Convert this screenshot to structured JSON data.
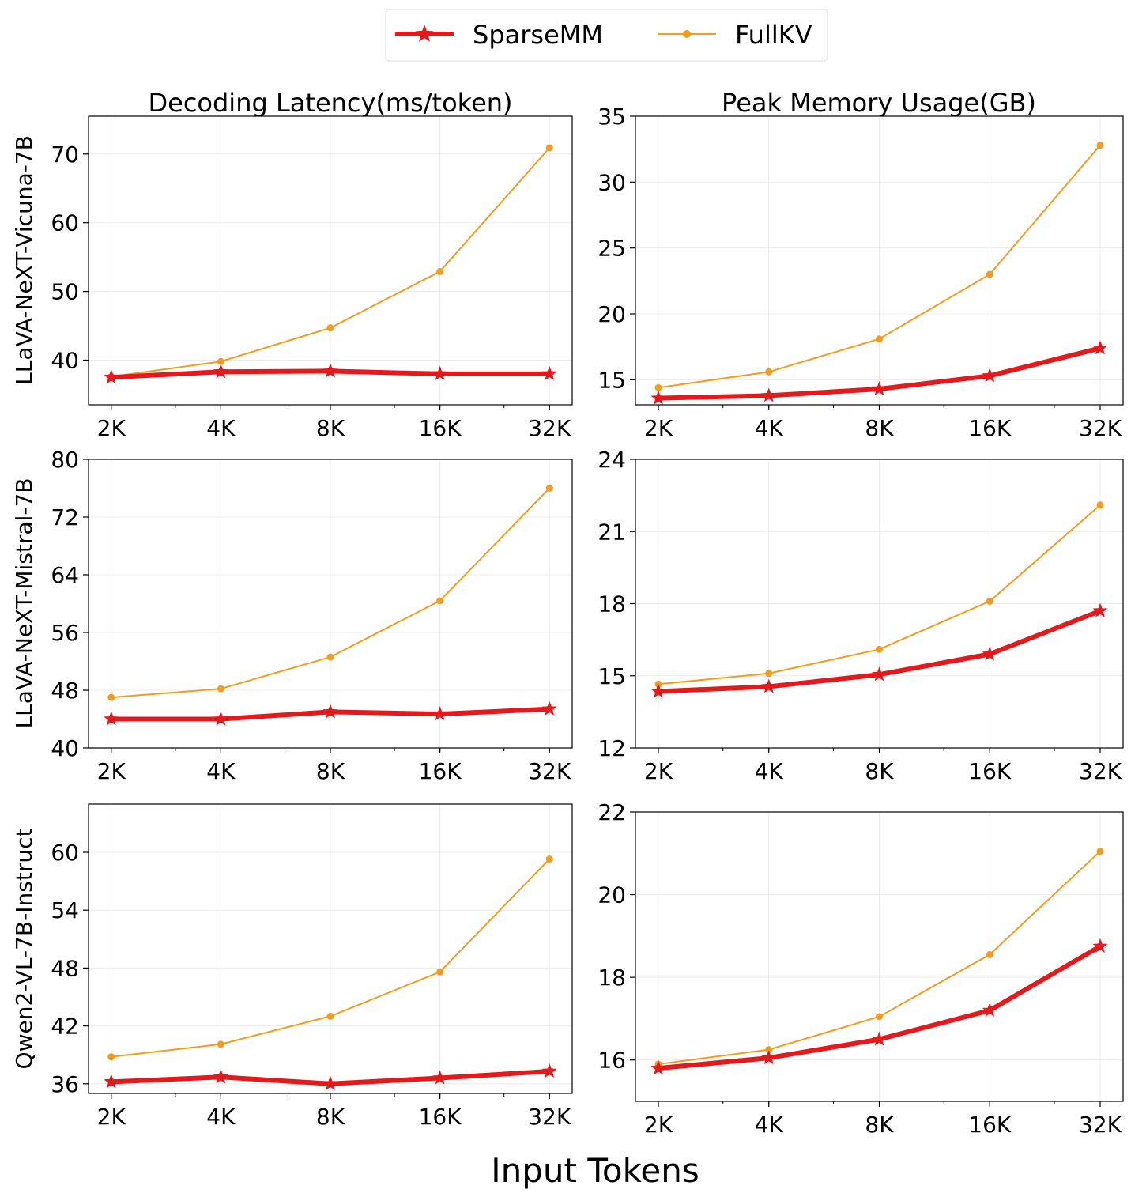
{
  "legend": {
    "entries": [
      {
        "label": "SparseMM",
        "color": "#e3191c",
        "marker": "star"
      },
      {
        "label": "FullKV",
        "color": "#f39c1f",
        "marker": "circle"
      }
    ],
    "placement": "top-center"
  },
  "column_titles": [
    "Decoding Latency(ms/token)",
    "Peak Memory Usage(GB)"
  ],
  "row_labels": [
    "LLaVA-NeXT-Vicuna-7B",
    "LLaVA-NeXT-Mistral-7B",
    "Qwen2-VL-7B-Instruct"
  ],
  "xlabel": "Input Tokens",
  "chart_data": [
    {
      "type": "line",
      "row": 0,
      "col": 0,
      "categories": [
        "2K",
        "4K",
        "8K",
        "16K",
        "32K"
      ],
      "x_scale": "log2",
      "ylim": [
        33.5,
        75.5
      ],
      "yticks": [
        40,
        50,
        60,
        70
      ],
      "grid": true,
      "series": [
        {
          "name": "SparseMM",
          "values": [
            37.5,
            38.3,
            38.4,
            38.0,
            38.0
          ]
        },
        {
          "name": "FullKV",
          "values": [
            37.6,
            39.8,
            44.7,
            52.9,
            70.9
          ]
        }
      ]
    },
    {
      "type": "line",
      "row": 0,
      "col": 1,
      "categories": [
        "2K",
        "4K",
        "8K",
        "16K",
        "32K"
      ],
      "x_scale": "log2",
      "ylim": [
        13.1,
        35
      ],
      "yticks": [
        15,
        20,
        25,
        30,
        35
      ],
      "grid": true,
      "series": [
        {
          "name": "SparseMM",
          "values": [
            13.6,
            13.8,
            14.3,
            15.3,
            17.4
          ]
        },
        {
          "name": "FullKV",
          "values": [
            14.4,
            15.6,
            18.1,
            23.0,
            32.8
          ]
        }
      ]
    },
    {
      "type": "line",
      "row": 1,
      "col": 0,
      "categories": [
        "2K",
        "4K",
        "8K",
        "16K",
        "32K"
      ],
      "x_scale": "log2",
      "ylim": [
        40,
        80
      ],
      "yticks": [
        40,
        48,
        56,
        64,
        72,
        80
      ],
      "grid": true,
      "series": [
        {
          "name": "SparseMM",
          "values": [
            44.0,
            44.0,
            45.0,
            44.7,
            45.4
          ]
        },
        {
          "name": "FullKV",
          "values": [
            47.0,
            48.2,
            52.6,
            60.4,
            76.0
          ]
        }
      ]
    },
    {
      "type": "line",
      "row": 1,
      "col": 1,
      "categories": [
        "2K",
        "4K",
        "8K",
        "16K",
        "32K"
      ],
      "x_scale": "log2",
      "ylim": [
        12,
        24
      ],
      "yticks": [
        12,
        15,
        18,
        21,
        24
      ],
      "grid": true,
      "series": [
        {
          "name": "SparseMM",
          "values": [
            14.35,
            14.55,
            15.05,
            15.9,
            17.7
          ]
        },
        {
          "name": "FullKV",
          "values": [
            14.65,
            15.1,
            16.1,
            18.1,
            22.1
          ]
        }
      ]
    },
    {
      "type": "line",
      "row": 2,
      "col": 0,
      "categories": [
        "2K",
        "4K",
        "8K",
        "16K",
        "32K"
      ],
      "x_scale": "log2",
      "ylim": [
        35,
        65
      ],
      "yticks": [
        36,
        42,
        48,
        54,
        60
      ],
      "grid": true,
      "series": [
        {
          "name": "SparseMM",
          "values": [
            36.2,
            36.7,
            36.0,
            36.6,
            37.3
          ]
        },
        {
          "name": "FullKV",
          "values": [
            38.8,
            40.1,
            43.0,
            47.6,
            59.3
          ]
        }
      ]
    },
    {
      "type": "line",
      "row": 2,
      "col": 1,
      "categories": [
        "2K",
        "4K",
        "8K",
        "16K",
        "32K"
      ],
      "x_scale": "log2",
      "ylim": [
        15,
        22
      ],
      "yticks": [
        16,
        18,
        20,
        22
      ],
      "grid": true,
      "series": [
        {
          "name": "SparseMM",
          "values": [
            15.8,
            16.05,
            16.5,
            17.2,
            18.75
          ]
        },
        {
          "name": "FullKV",
          "values": [
            15.9,
            16.25,
            17.05,
            18.55,
            21.05
          ]
        }
      ]
    }
  ]
}
